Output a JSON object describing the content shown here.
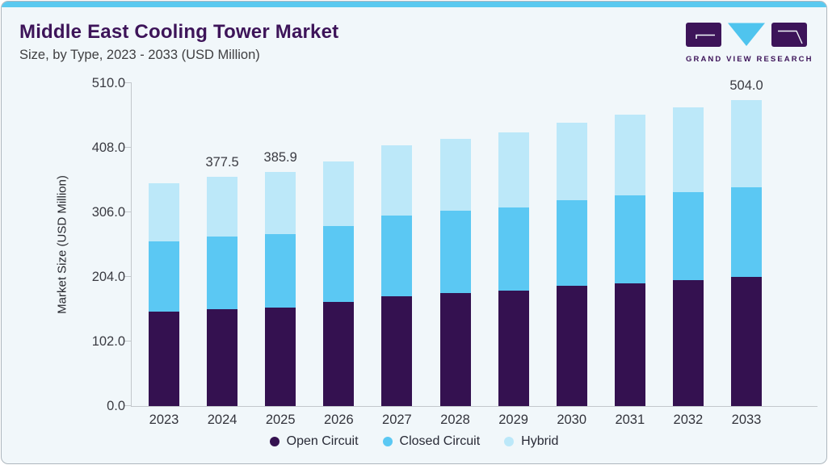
{
  "page": {
    "title": "Middle East Cooling Tower Market",
    "subtitle": "Size, by Type, 2023 - 2033 (USD Million)"
  },
  "logo": {
    "name": "grand-view-research-logo",
    "text": "GRAND VIEW RESEARCH",
    "purple": "#3d1459",
    "blue": "#4fc4ee"
  },
  "colors": {
    "accent_stripe": "#5bc9ef",
    "card_background": "#f1f7fa",
    "axis_line": "#c3c8cc"
  },
  "chart_data": {
    "type": "bar",
    "stacked": true,
    "title": "Middle East Cooling Tower Market Size, by Type, 2023 - 2033 (USD Million)",
    "xlabel": "",
    "ylabel": "Market Size (USD Million)",
    "ylim": [
      0,
      510
    ],
    "y_ticks": [
      "0.0",
      "102.0",
      "204.0",
      "306.0",
      "408.0",
      "510.0"
    ],
    "grid": false,
    "legend_position": "bottom",
    "categories": [
      "2023",
      "2024",
      "2025",
      "2026",
      "2027",
      "2028",
      "2029",
      "2030",
      "2031",
      "2032",
      "2033"
    ],
    "series": [
      {
        "name": "Open Circuit",
        "color": "#341150",
        "values": [
          155.7,
          159.7,
          162.9,
          170.9,
          181.0,
          186.8,
          190.3,
          197.5,
          202.8,
          208.1,
          213.4
        ]
      },
      {
        "name": "Closed Circuit",
        "color": "#5bc8f3",
        "values": [
          115.3,
          119.7,
          120.5,
          125.4,
          132.6,
          135.0,
          137.0,
          141.3,
          144.0,
          144.4,
          147.1
        ]
      },
      {
        "name": "Hybrid",
        "color": "#bce8f9",
        "values": [
          96.2,
          98.1,
          102.5,
          106.8,
          115.3,
          119.0,
          124.2,
          128.1,
          133.4,
          139.3,
          143.5
        ]
      }
    ],
    "bar_labels": [
      "",
      "377.5",
      "385.9",
      "",
      "",
      "",
      "",
      "",
      "",
      "",
      "504.0"
    ]
  }
}
